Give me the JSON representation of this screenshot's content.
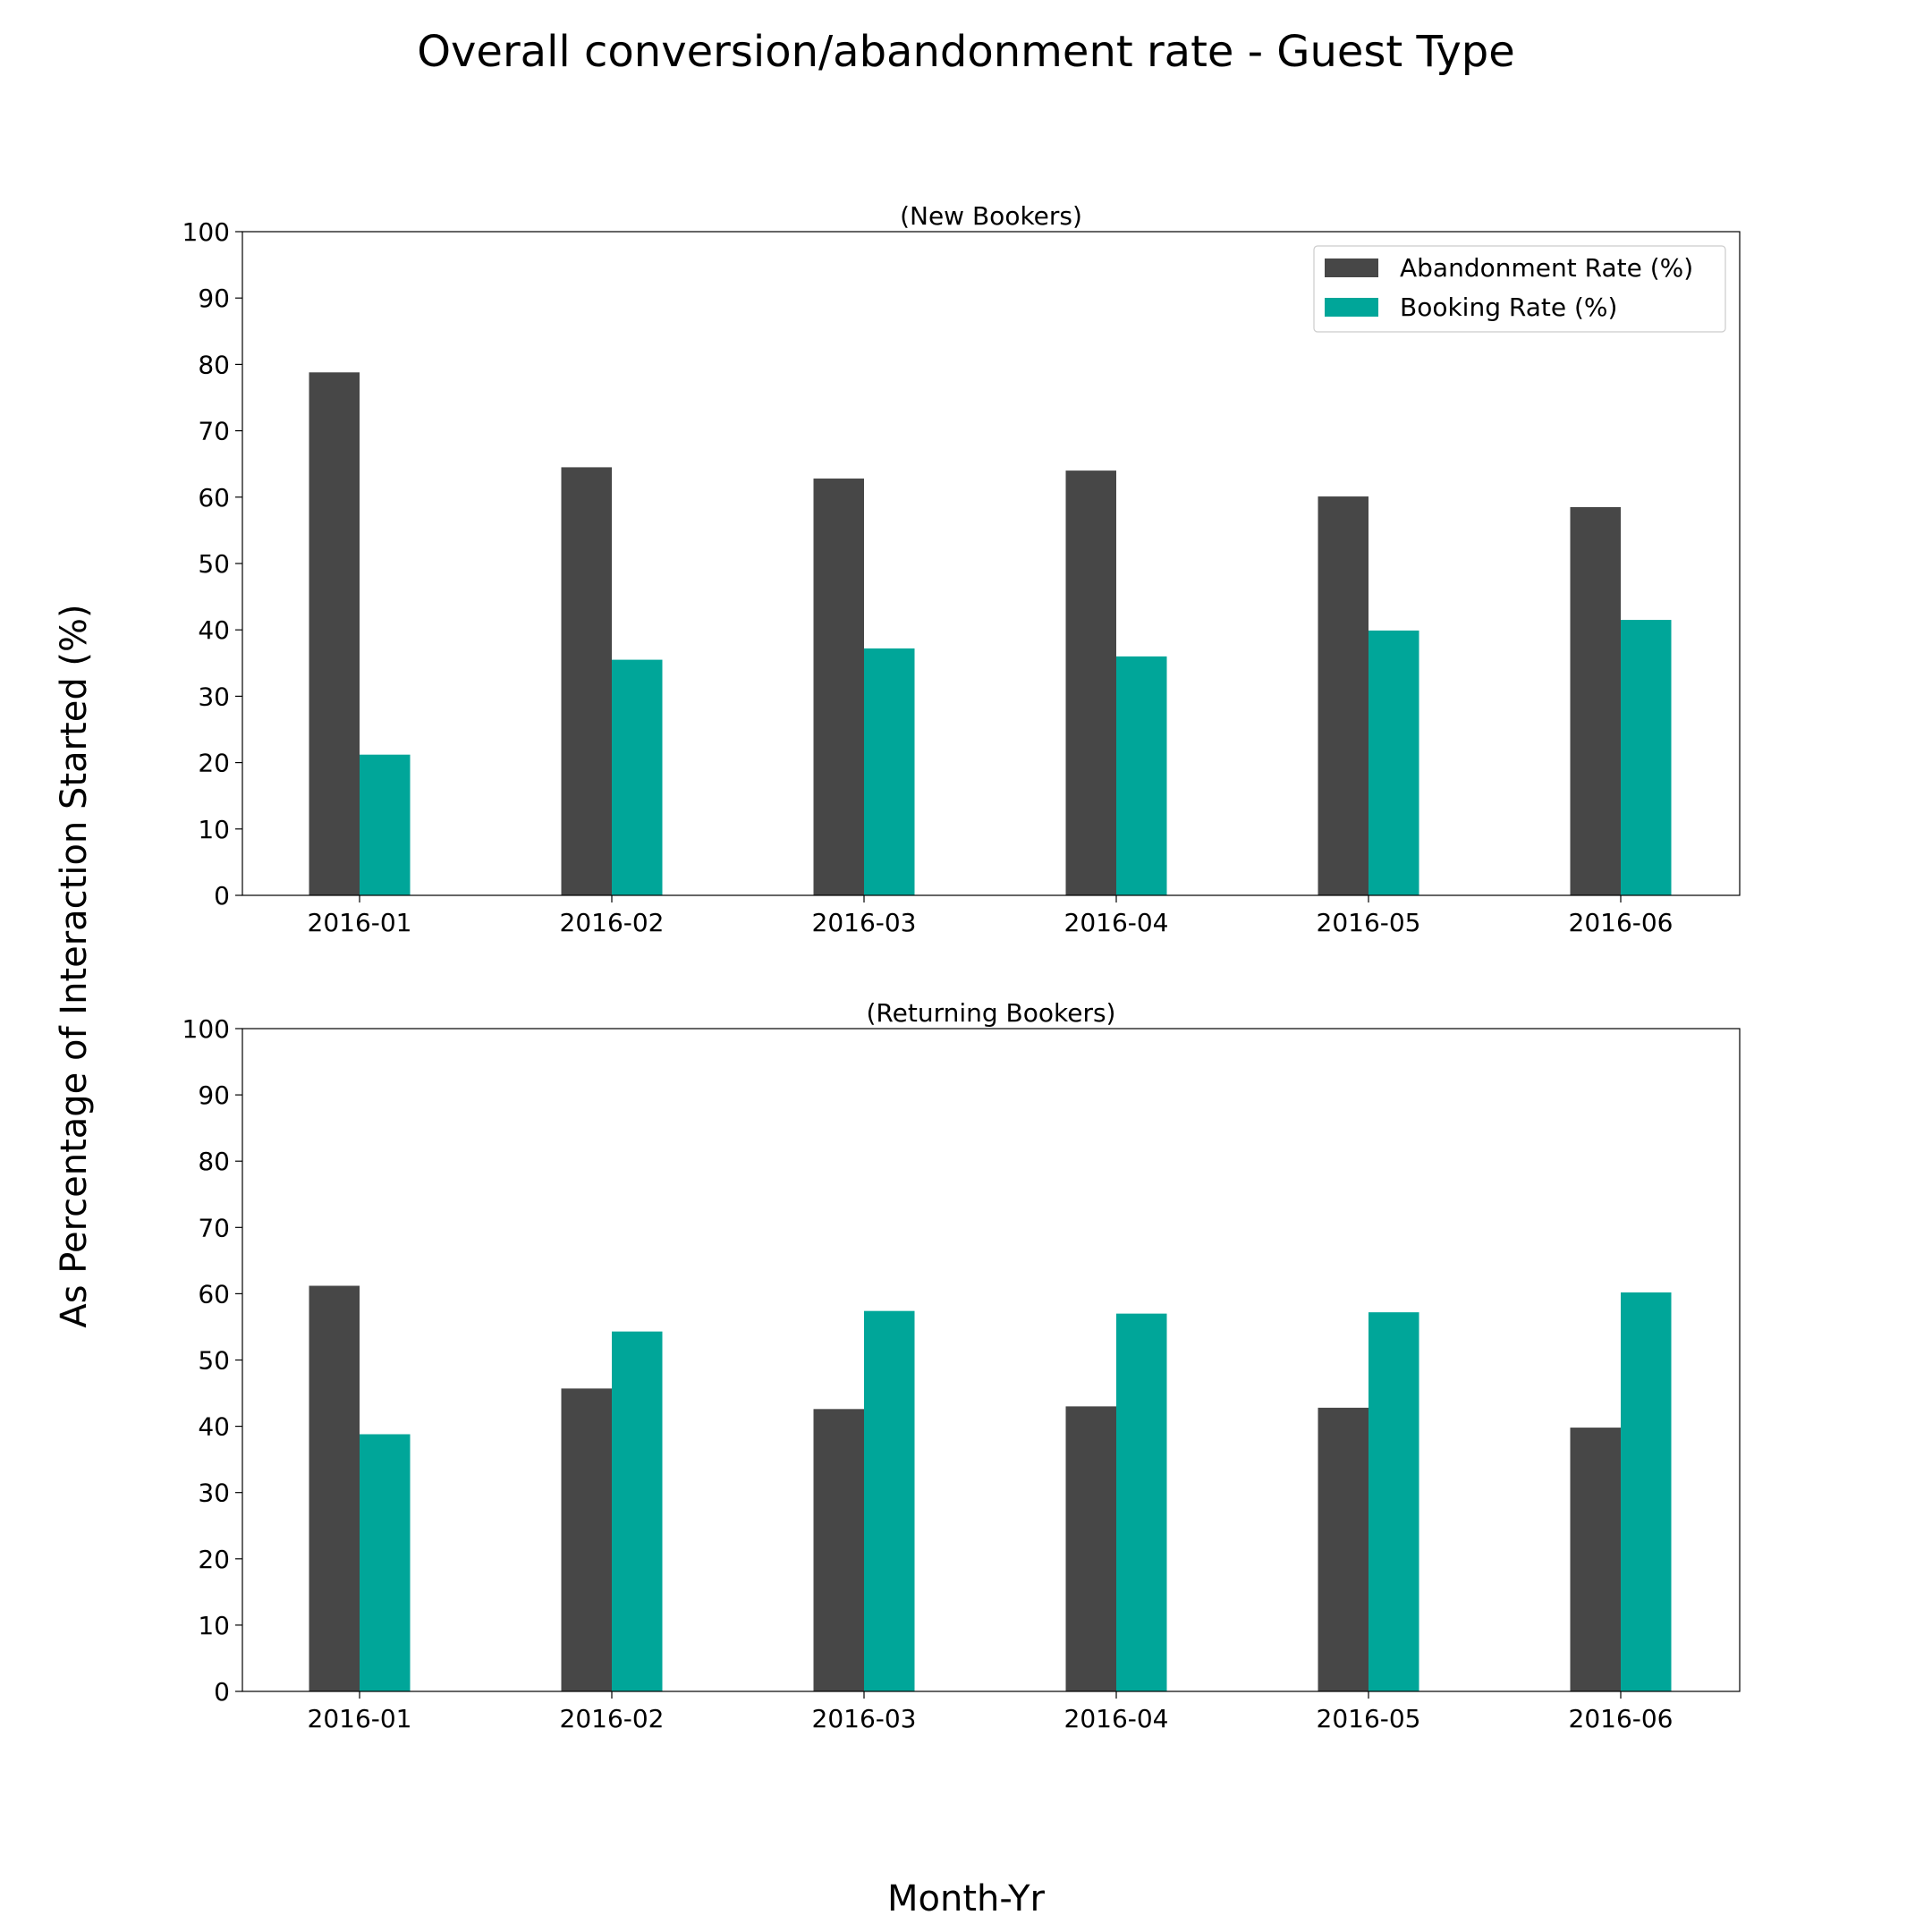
{
  "chart_data": {
    "type": "bar",
    "title": "Overall conversion/abandonment rate - Guest Type",
    "xlabel": "Month-Yr",
    "ylabel": "As Percentage of Interaction Started (%)",
    "colors": {
      "Abandonment Rate (%)": "#474747",
      "Booking Rate (%)": "#00a699"
    },
    "legend": {
      "placement": "top-right",
      "entries": [
        "Abandonment Rate (%)",
        "Booking Rate (%)"
      ]
    },
    "grid": false,
    "subplots": [
      {
        "title": "(New Bookers)",
        "categories": [
          "2016-01",
          "2016-02",
          "2016-03",
          "2016-04",
          "2016-05",
          "2016-06"
        ],
        "ylim": [
          0,
          100
        ],
        "yticks": [
          0,
          10,
          20,
          30,
          40,
          50,
          60,
          70,
          80,
          90,
          100
        ],
        "series": [
          {
            "name": "Abandonment Rate (%)",
            "values": [
              78.8,
              64.5,
              62.8,
              64.0,
              60.1,
              58.5
            ]
          },
          {
            "name": "Booking Rate (%)",
            "values": [
              21.2,
              35.5,
              37.2,
              36.0,
              39.9,
              41.5
            ]
          }
        ]
      },
      {
        "title": "(Returning Bookers)",
        "categories": [
          "2016-01",
          "2016-02",
          "2016-03",
          "2016-04",
          "2016-05",
          "2016-06"
        ],
        "ylim": [
          0,
          100
        ],
        "yticks": [
          0,
          10,
          20,
          30,
          40,
          50,
          60,
          70,
          80,
          90,
          100
        ],
        "series": [
          {
            "name": "Abandonment Rate (%)",
            "values": [
              61.2,
              45.7,
              42.6,
              43.0,
              42.8,
              39.8
            ]
          },
          {
            "name": "Booking Rate (%)",
            "values": [
              38.8,
              54.3,
              57.4,
              57.0,
              57.2,
              60.2
            ]
          }
        ]
      }
    ]
  }
}
